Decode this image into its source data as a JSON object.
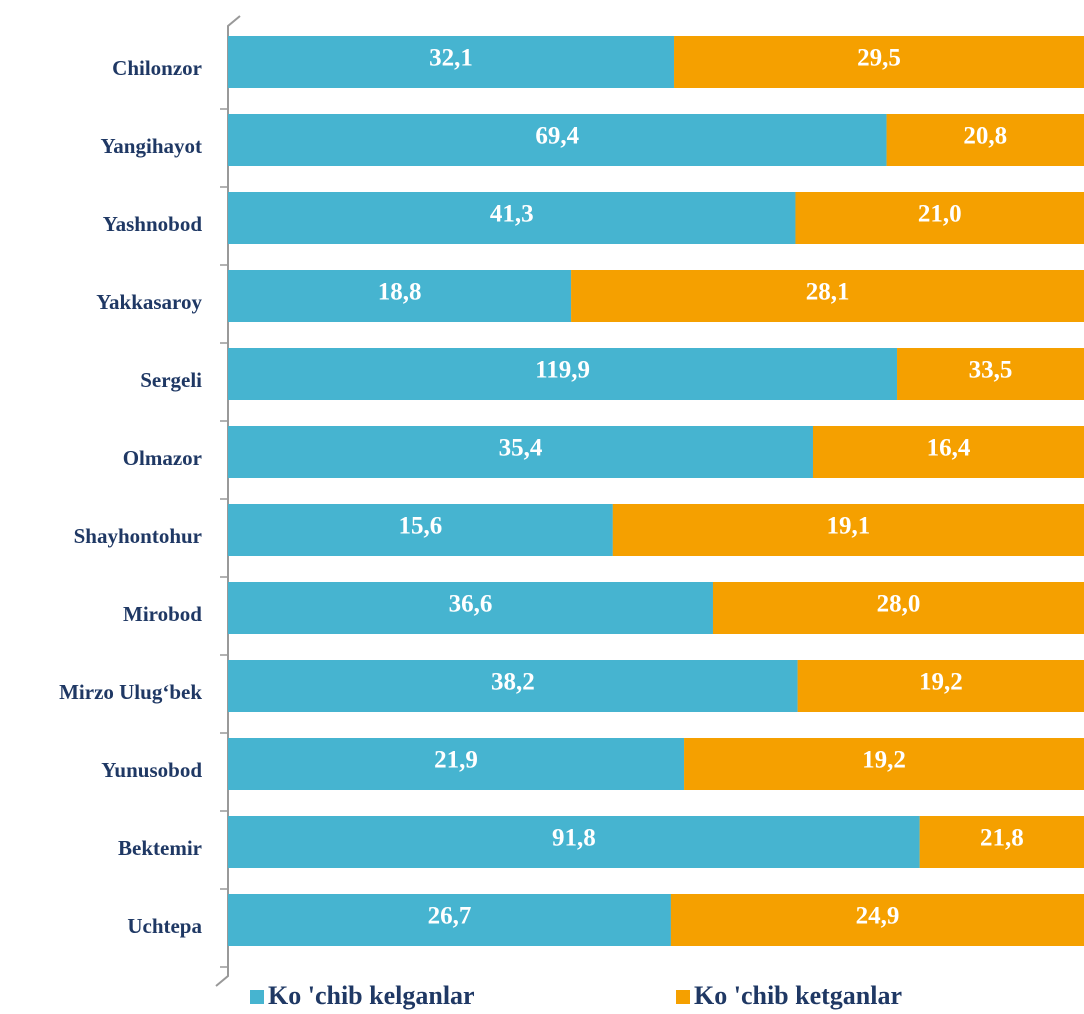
{
  "chart_data": {
    "type": "stacked_bar_100",
    "categories": [
      "Chilonzor",
      "Yangihayot",
      "Yashnobod",
      "Yakkasaroy",
      "Sergeli",
      "Olmazor",
      "Shayhontohur",
      "Mirobod",
      "Mirzo Ulug‘bek",
      "Yunusobod",
      "Bektemir",
      "Uchtepa"
    ],
    "series": [
      {
        "name": "Ko 'chib kelganlar",
        "color": "#46b4d0",
        "values": [
          32.1,
          69.4,
          41.3,
          18.8,
          119.9,
          35.4,
          15.6,
          36.6,
          38.2,
          21.9,
          91.8,
          26.7
        ],
        "value_labels": [
          "32,1",
          "69,4",
          "41,3",
          "18,8",
          "119,9",
          "35,4",
          "15,6",
          "36,6",
          "38,2",
          "21,9",
          "91,8",
          "26,7"
        ]
      },
      {
        "name": "Ko 'chib ketganlar",
        "color": "#f5a000",
        "values": [
          29.5,
          20.8,
          21.0,
          28.1,
          33.5,
          16.4,
          19.1,
          28.0,
          19.2,
          19.2,
          21.8,
          24.9
        ],
        "value_labels": [
          "29,5",
          "20,8",
          "21,0",
          "28,1",
          "33,5",
          "16,4",
          "19,1",
          "28,0",
          "19,2",
          "19,2",
          "21,8",
          "24,9"
        ]
      }
    ],
    "legend": "bottom"
  }
}
